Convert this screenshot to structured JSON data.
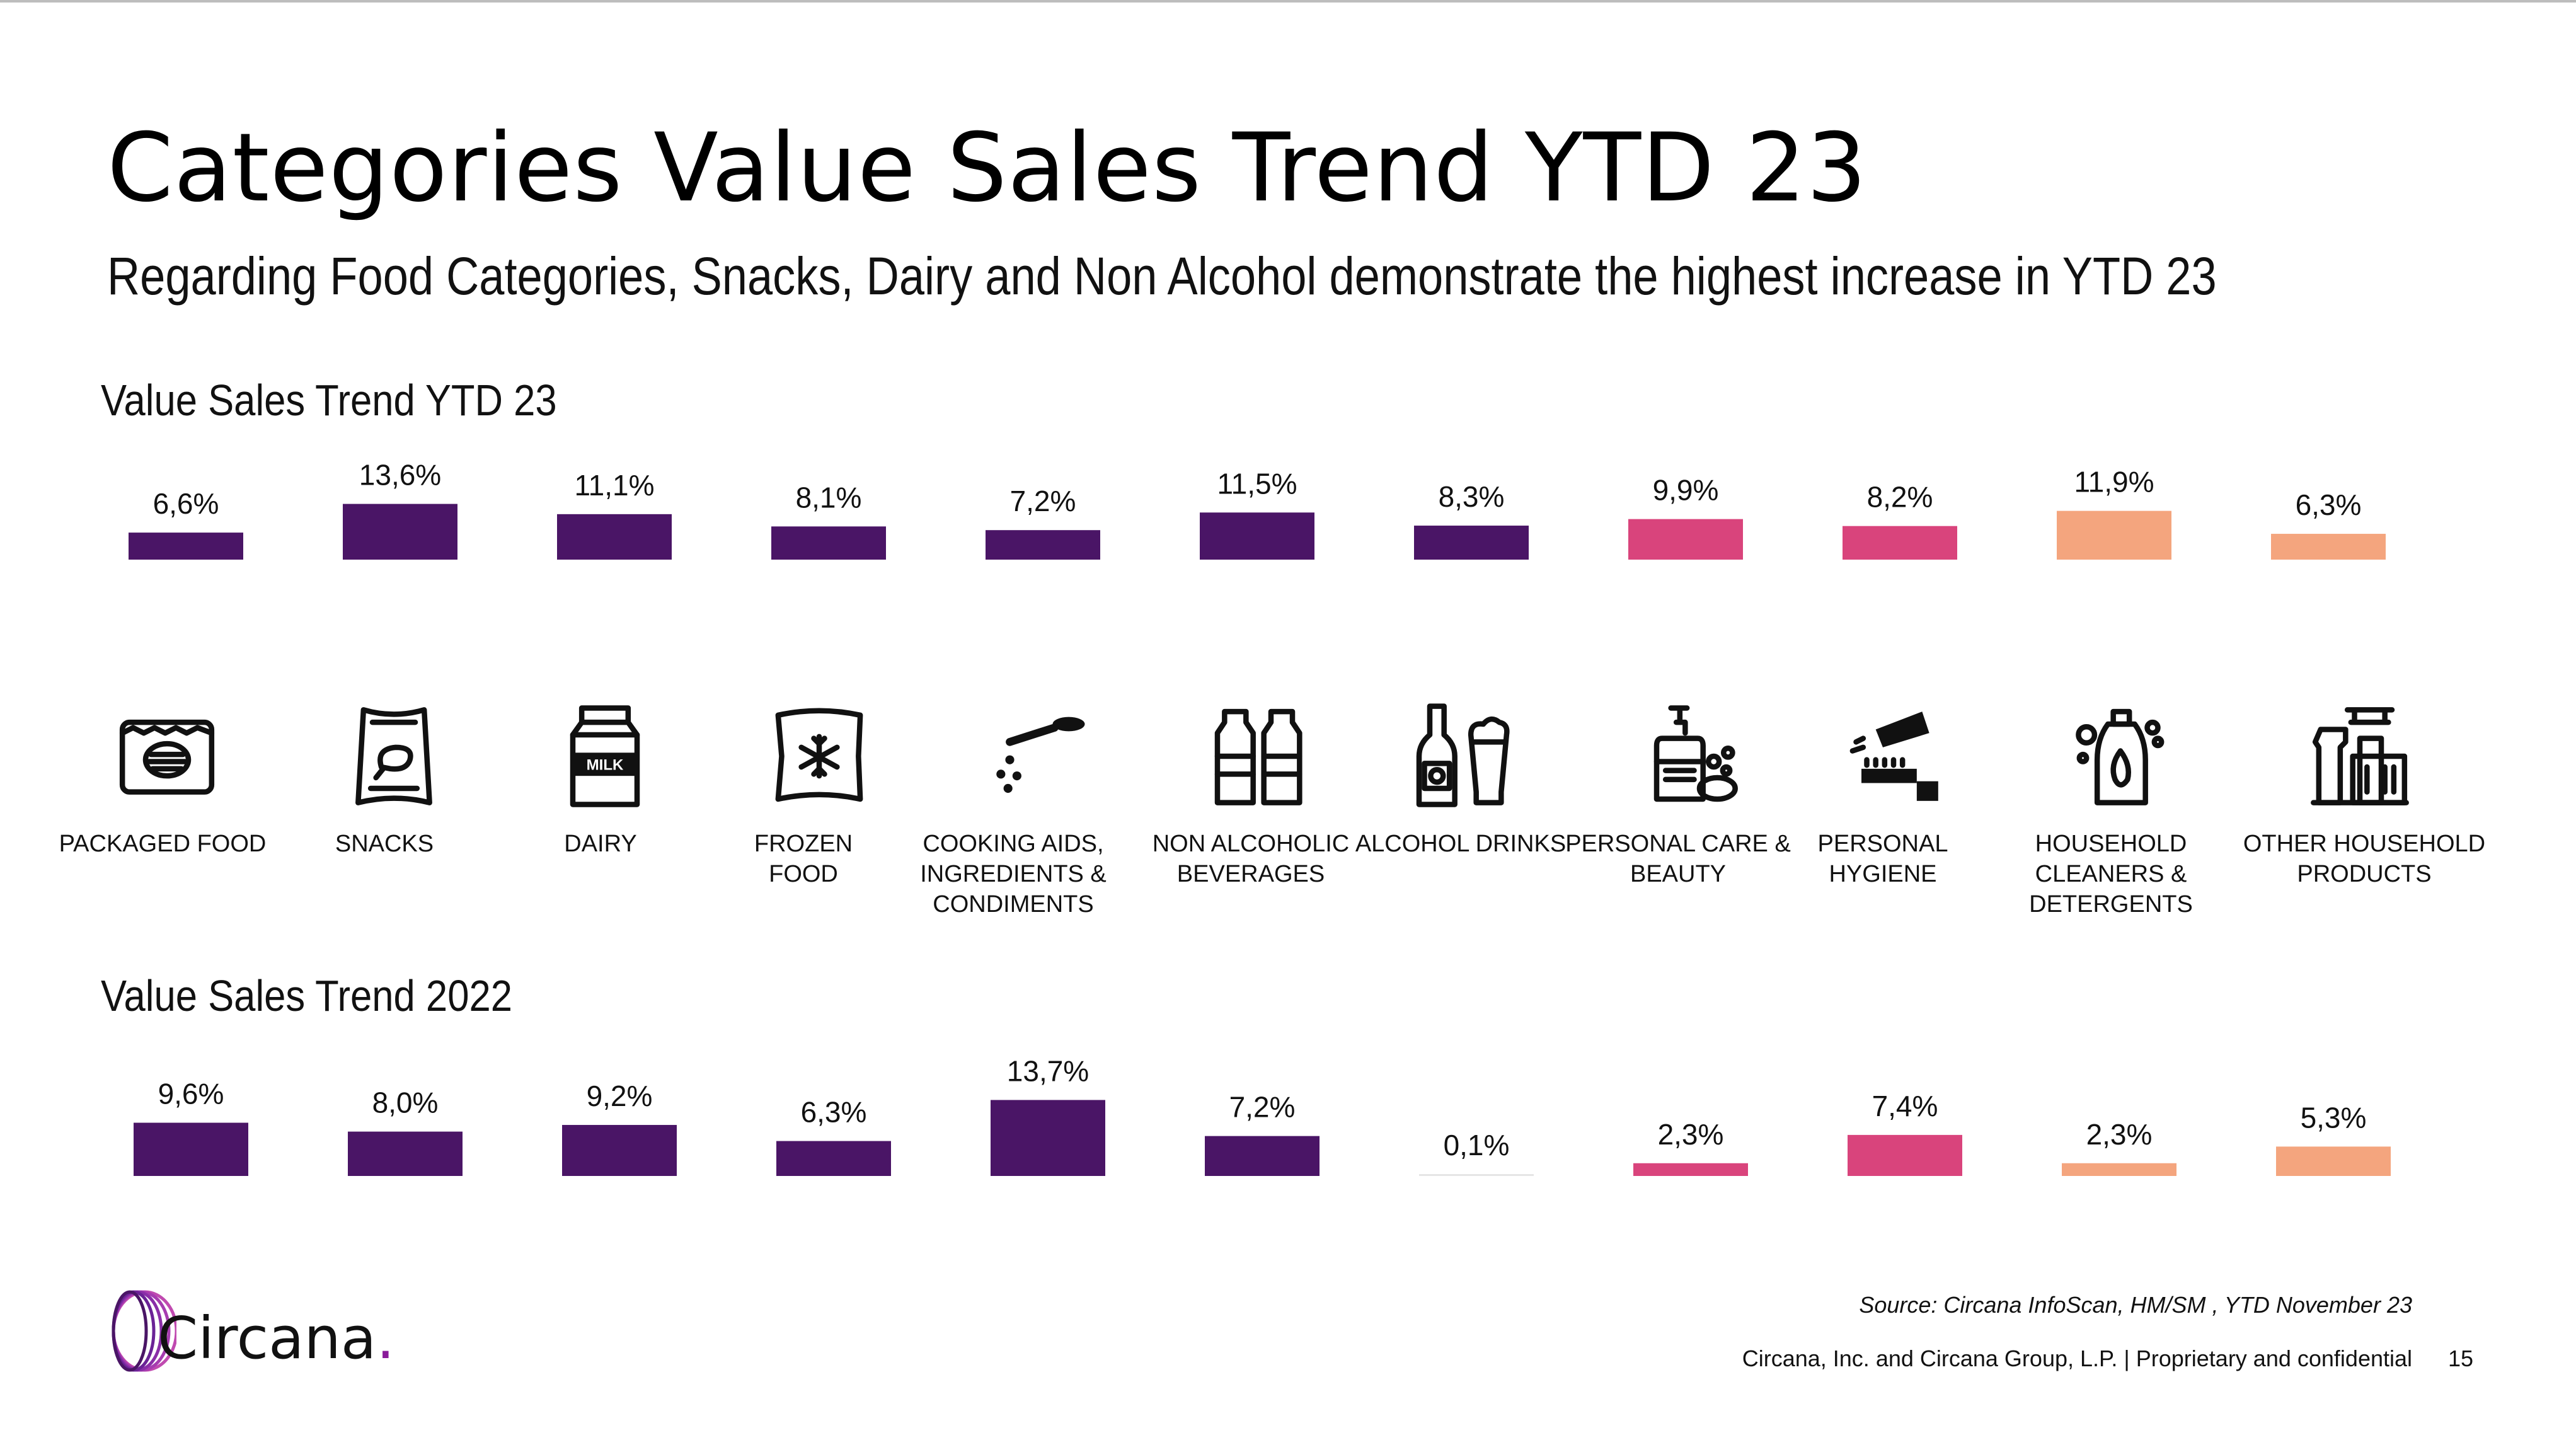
{
  "slide": {
    "title": "Categories Value Sales Trend YTD 23",
    "subtitle": "Regarding Food Categories, Snacks, Dairy and Non Alcohol demonstrate the highest increase in YTD 23",
    "section_ytd": "Value Sales Trend YTD 23",
    "section_2022": "Value Sales Trend 2022",
    "source": "Source: Circana InfoScan, HM/SM , YTD November 23",
    "footer": "Circana, Inc. and Circana Group, L.P. |  Proprietary and confidential",
    "page_number": "15",
    "logo_text": "Circana",
    "logo_dot": "."
  },
  "colors": {
    "food": "#4a1566",
    "personal": "#d9447c",
    "household": "#f4a57e"
  },
  "categories": [
    {
      "label_lines": [
        "PACKAGED FOOD"
      ],
      "icon": "packaged-food-icon",
      "group": "food"
    },
    {
      "label_lines": [
        "SNACKS"
      ],
      "icon": "snacks-icon",
      "group": "food"
    },
    {
      "label_lines": [
        "DAIRY"
      ],
      "icon": "milk-carton-icon",
      "group": "food",
      "icon_text": "MILK"
    },
    {
      "label_lines": [
        "FROZEN",
        "FOOD"
      ],
      "icon": "frozen-food-icon",
      "group": "food"
    },
    {
      "label_lines": [
        "COOKING AIDS,",
        "INGREDIENTS &",
        "CONDIMENTS"
      ],
      "icon": "spoon-icon",
      "group": "food"
    },
    {
      "label_lines": [
        "NON ALCOHOLIC",
        "BEVERAGES"
      ],
      "icon": "bottles-icon",
      "group": "food"
    },
    {
      "label_lines": [
        "ALCOHOL DRINKS"
      ],
      "icon": "beer-icon",
      "group": "food"
    },
    {
      "label_lines": [
        "PERSONAL CARE &",
        "BEAUTY"
      ],
      "icon": "soap-dispenser-icon",
      "group": "personal"
    },
    {
      "label_lines": [
        "PERSONAL",
        "HYGIENE"
      ],
      "icon": "toothbrush-icon",
      "group": "personal"
    },
    {
      "label_lines": [
        "HOUSEHOLD CLEANERS &",
        "DETERGENTS"
      ],
      "icon": "detergent-icon",
      "group": "household"
    },
    {
      "label_lines": [
        "OTHER HOUSEHOLD",
        "PRODUCTS"
      ],
      "icon": "cleaning-supplies-icon",
      "group": "household"
    }
  ],
  "chart_data": [
    {
      "type": "bar",
      "title": "Value Sales Trend YTD 23",
      "categories": [
        "PACKAGED FOOD",
        "SNACKS",
        "DAIRY",
        "FROZEN FOOD",
        "COOKING AIDS, INGREDIENTS & CONDIMENTS",
        "NON ALCOHOLIC BEVERAGES",
        "ALCOHOL DRINKS",
        "PERSONAL CARE & BEAUTY",
        "PERSONAL HYGIENE",
        "HOUSEHOLD CLEANERS & DETERGENTS",
        "OTHER HOUSEHOLD PRODUCTS"
      ],
      "values": [
        6.6,
        13.6,
        11.1,
        8.1,
        7.2,
        11.5,
        8.3,
        9.9,
        8.2,
        11.9,
        6.3
      ],
      "value_labels": [
        "6,6%",
        "13,6%",
        "11,1%",
        "8,1%",
        "7,2%",
        "11,5%",
        "8,3%",
        "9,9%",
        "8,2%",
        "11,9%",
        "6,3%"
      ],
      "unit": "%",
      "grid": false,
      "axes": "none"
    },
    {
      "type": "bar",
      "title": "Value Sales Trend 2022",
      "categories": [
        "PACKAGED FOOD",
        "SNACKS",
        "DAIRY",
        "FROZEN FOOD",
        "COOKING AIDS, INGREDIENTS & CONDIMENTS",
        "NON ALCOHOLIC BEVERAGES",
        "ALCOHOL DRINKS",
        "PERSONAL CARE & BEAUTY",
        "PERSONAL HYGIENE",
        "HOUSEHOLD CLEANERS & DETERGENTS",
        "OTHER HOUSEHOLD PRODUCTS"
      ],
      "values": [
        9.6,
        8.0,
        9.2,
        6.3,
        13.7,
        7.2,
        0.1,
        2.3,
        7.4,
        2.3,
        5.3
      ],
      "value_labels": [
        "9,6%",
        "8,0%",
        "9,2%",
        "6,3%",
        "13,7%",
        "7,2%",
        "0,1%",
        "2,3%",
        "7,4%",
        "2,3%",
        "5,3%"
      ],
      "unit": "%",
      "grid": false,
      "axes": "none"
    }
  ]
}
